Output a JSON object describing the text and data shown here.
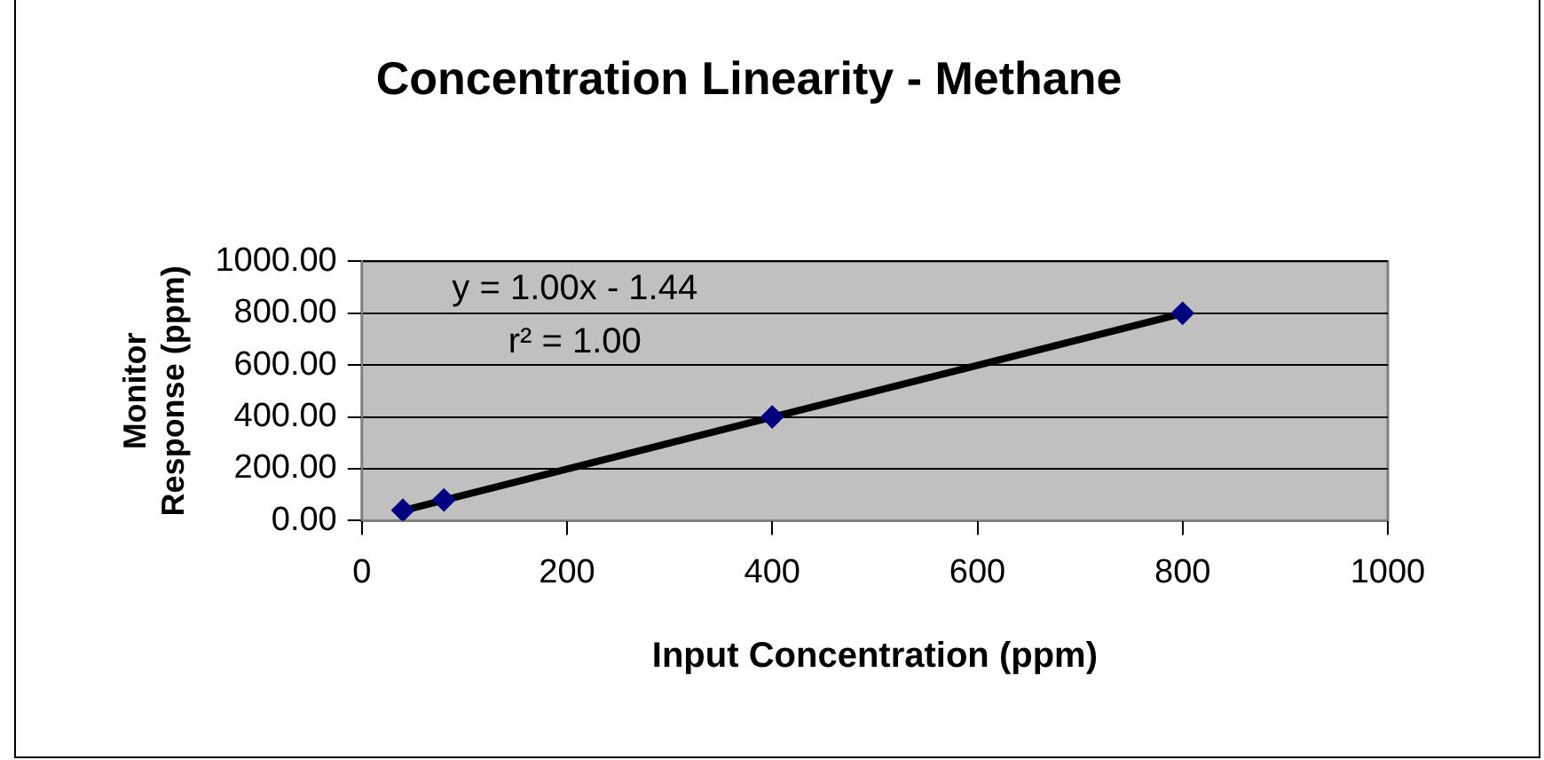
{
  "chart_data": {
    "type": "scatter",
    "title": "Concentration Linearity - Methane",
    "xlabel": "Input Concentration (ppm)",
    "ylabel": "Monitor\nResponse (ppm)",
    "series": [
      {
        "color": "#000080",
        "marker": "diamond",
        "x": [
          40,
          80,
          400,
          800
        ],
        "values": [
          40,
          80,
          400,
          800
        ]
      },
      {
        "type": "line",
        "color": "#000000",
        "marker": "none",
        "x": [
          40,
          800
        ],
        "values": [
          39,
          799
        ]
      }
    ],
    "xlim": [
      0,
      1000
    ],
    "xticks": [
      0,
      200,
      400,
      600,
      800,
      1000
    ],
    "ylim": [
      0,
      1000
    ],
    "yticks": [
      {
        "value": 0,
        "label": "0.00"
      },
      {
        "value": 200,
        "label": "200.00"
      },
      {
        "value": 400,
        "label": "400.00"
      },
      {
        "value": 600,
        "label": "600.00"
      },
      {
        "value": 800,
        "label": "800.00"
      },
      {
        "value": 1000,
        "label": "1000.00"
      }
    ],
    "annotations": [
      "y = 1.00x - 1.44",
      "r² = 1.00"
    ],
    "grid": "y",
    "legend": false,
    "line_style": "solid"
  }
}
